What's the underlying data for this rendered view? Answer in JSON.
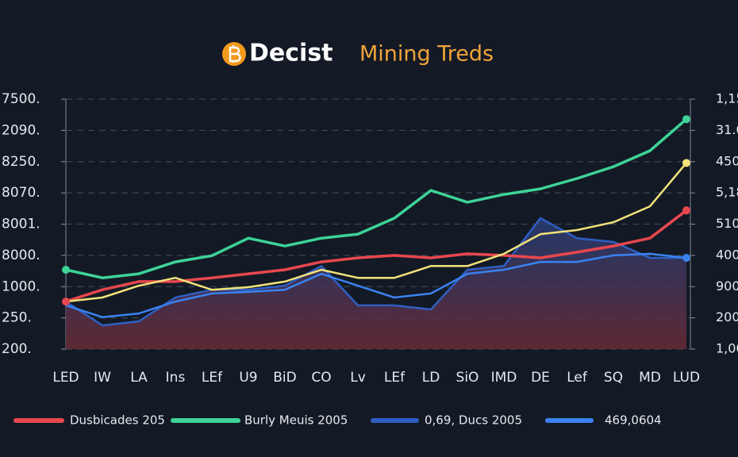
{
  "chart_data": {
    "type": "line",
    "title": "Decist",
    "subtitle": "Mining Treds",
    "categories": [
      "LED",
      "IW",
      "LA",
      "Ins",
      "LEf",
      "U9",
      "BiD",
      "CO",
      "Lv",
      "LEf",
      "LD",
      "SiO",
      "IMD",
      "DE",
      "Lef",
      "SQ",
      "MD",
      "LUD"
    ],
    "series": [
      {
        "name": "Dusbicades 205",
        "color": "#e8474f",
        "values": [
          1.52,
          1.9,
          2.16,
          2.16,
          2.28,
          2.41,
          2.54,
          2.79,
          2.92,
          3.0,
          2.92,
          3.05,
          3.0,
          2.92,
          3.1,
          3.3,
          3.55,
          4.44
        ]
      },
      {
        "name": "Burly Meuis 2005",
        "color": "#3ed398",
        "values": [
          2.54,
          2.28,
          2.41,
          2.79,
          2.99,
          3.55,
          3.3,
          3.55,
          3.68,
          4.19,
          5.08,
          4.7,
          4.95,
          5.13,
          5.46,
          5.84,
          6.35,
          7.36
        ]
      },
      {
        "name": "0,69, Ducs 2005",
        "color": "#2f5fc4",
        "values": [
          1.52,
          0.76,
          0.89,
          1.65,
          1.9,
          1.9,
          2.03,
          2.66,
          1.4,
          1.4,
          1.27,
          2.54,
          2.66,
          4.19,
          3.55,
          3.43,
          2.92,
          2.92
        ]
      },
      {
        "name": "469,0604",
        "color": "#3b82f0",
        "values": [
          1.4,
          1.02,
          1.14,
          1.52,
          1.78,
          1.83,
          1.9,
          2.41,
          2.03,
          1.65,
          1.78,
          2.41,
          2.54,
          2.79,
          2.79,
          3.0,
          3.05,
          2.92
        ]
      }
    ],
    "yellow_series": {
      "color": "#f2e27a",
      "values": [
        1.52,
        1.65,
        2.03,
        2.28,
        1.9,
        1.98,
        2.16,
        2.54,
        2.28,
        2.28,
        2.66,
        2.66,
        3.05,
        3.68,
        3.81,
        4.06,
        4.57,
        5.96
      ]
    },
    "ylim": [
      0,
      8
    ],
    "yticks": [
      {
        "value": 0,
        "label": "200."
      },
      {
        "value": 1,
        "label": "250."
      },
      {
        "value": 2,
        "label": "1000."
      },
      {
        "value": 3,
        "label": "8000."
      },
      {
        "value": 4,
        "label": "8001."
      },
      {
        "value": 5,
        "label": "8070."
      },
      {
        "value": 6,
        "label": "8250."
      },
      {
        "value": 7,
        "label": "2090."
      },
      {
        "value": 8,
        "label": "7500."
      }
    ],
    "y2lim": [
      0,
      8
    ],
    "y2ticks": [
      {
        "value": 0,
        "label": "1,00"
      },
      {
        "value": 1,
        "label": "200"
      },
      {
        "value": 2,
        "label": "900"
      },
      {
        "value": 3,
        "label": "400"
      },
      {
        "value": 4,
        "label": "510"
      },
      {
        "value": 5,
        "label": "5,18"
      },
      {
        "value": 6,
        "label": "450"
      },
      {
        "value": 7,
        "label": "31.0"
      },
      {
        "value": 8,
        "label": "1,15"
      }
    ],
    "grid": true
  }
}
